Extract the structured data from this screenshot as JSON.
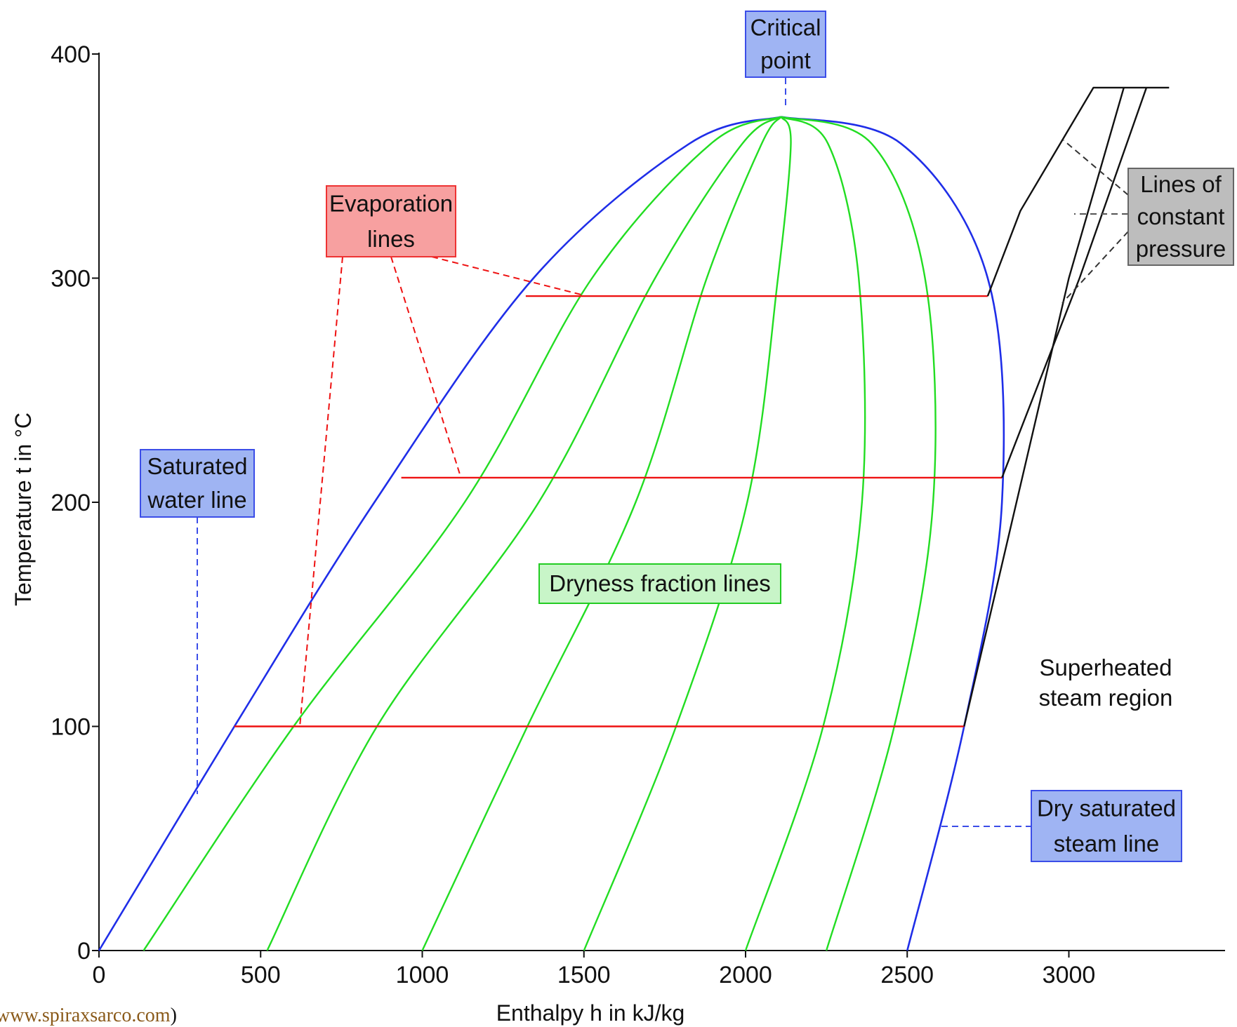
{
  "chart_data": {
    "type": "line",
    "xlabel": "Enthalpy h in kJ/kg",
    "ylabel": "Temperature t in °C",
    "xlim": [
      0,
      3500
    ],
    "ylim": [
      0,
      400
    ],
    "x_ticks": [
      0,
      500,
      1000,
      1500,
      2000,
      2500,
      3000
    ],
    "y_ticks": [
      0,
      100,
      200,
      300,
      400
    ],
    "critical_point": [
      2110,
      372
    ],
    "colors": {
      "saturation": "#1f2ee8",
      "dryness": "#22dd22",
      "evaporation": "#ee1111",
      "pressure": "#111111",
      "callout_blue": "#9fb4f3",
      "callout_red": "#f7a0a0",
      "callout_green": "#c8f5c8",
      "callout_grey": "#bdbdbd"
    },
    "series": [
      {
        "role": "saturated-water-line",
        "color": "#1f2ee8",
        "x": [
          0,
          419,
          852,
          1344,
          1826,
          2110
        ],
        "y": [
          0,
          100,
          200,
          300,
          360,
          372
        ]
      },
      {
        "role": "dry-saturated-steam-line",
        "color": "#1f2ee8",
        "x": [
          2500,
          2676,
          2793,
          2749,
          2481,
          2110
        ],
        "y": [
          0,
          100,
          200,
          300,
          360,
          372
        ]
      },
      {
        "role": "dryness-fraction-line",
        "color": "#22dd22",
        "x": [
          138,
          602,
          1131,
          1525,
          1893,
          2110
        ],
        "y": [
          0,
          100,
          200,
          300,
          360,
          372
        ]
      },
      {
        "role": "dryness-fraction-line",
        "color": "#22dd22",
        "x": [
          520,
          860,
          1360,
          1720,
          1990,
          2110
        ],
        "y": [
          0,
          100,
          200,
          300,
          360,
          372
        ]
      },
      {
        "role": "dryness-fraction-line",
        "color": "#22dd22",
        "x": [
          1000,
          1325,
          1660,
          1880,
          2050,
          2110
        ],
        "y": [
          0,
          100,
          200,
          300,
          360,
          372
        ]
      },
      {
        "role": "dryness-fraction-line",
        "color": "#22dd22",
        "x": [
          1500,
          1785,
          2005,
          2100,
          2140,
          2110
        ],
        "y": [
          0,
          100,
          200,
          300,
          360,
          372
        ]
      },
      {
        "role": "dryness-fraction-line",
        "color": "#22dd22",
        "x": [
          2000,
          2240,
          2360,
          2350,
          2255,
          2110
        ],
        "y": [
          0,
          100,
          200,
          300,
          360,
          372
        ]
      },
      {
        "role": "dryness-fraction-line",
        "color": "#22dd22",
        "x": [
          2250,
          2460,
          2580,
          2555,
          2390,
          2110
        ],
        "y": [
          0,
          100,
          200,
          300,
          360,
          372
        ]
      },
      {
        "role": "evaporation-line",
        "color": "#ee1111",
        "x": [
          419,
          2676
        ],
        "y": [
          100,
          100
        ]
      },
      {
        "role": "evaporation-line",
        "color": "#ee1111",
        "x": [
          935,
          2793
        ],
        "y": [
          211,
          211
        ]
      },
      {
        "role": "evaporation-line",
        "color": "#ee1111",
        "x": [
          1320,
          2749
        ],
        "y": [
          292,
          292
        ]
      },
      {
        "role": "constant-pressure-line",
        "color": "#111111",
        "x": [
          2676,
          3000,
          3170
        ],
        "y": [
          100,
          300,
          385
        ]
      },
      {
        "role": "constant-pressure-line",
        "color": "#111111",
        "x": [
          2793,
          3033,
          3240
        ],
        "y": [
          211,
          300,
          385
        ]
      },
      {
        "role": "constant-pressure-line",
        "color": "#111111",
        "x": [
          2749,
          2850,
          3076,
          3310
        ],
        "y": [
          292,
          330,
          385,
          385
        ]
      }
    ],
    "annotations": {
      "critical_point": [
        "Critical",
        "point"
      ],
      "evaporation_lines": [
        "Evaporation",
        "lines"
      ],
      "saturated_water_line": [
        "Saturated",
        "water line"
      ],
      "dryness_fraction_lines": [
        "Dryness fraction lines"
      ],
      "lines_of_constant_pressure": [
        "Lines of",
        "constant",
        "pressure"
      ],
      "superheated_region": [
        "Superheated",
        "steam region"
      ],
      "dry_saturated_steam_line": [
        "Dry saturated",
        "steam line"
      ]
    }
  },
  "source": {
    "text": "www.spiraxsarco.com",
    "close_paren": ")"
  }
}
